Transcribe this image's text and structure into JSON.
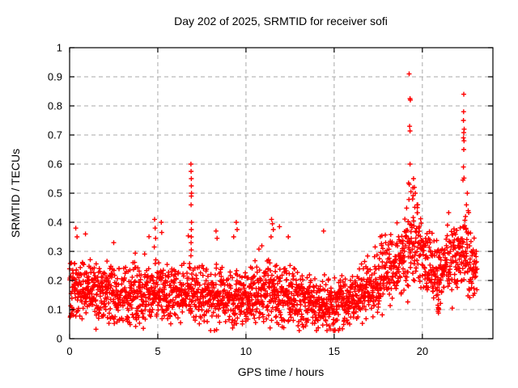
{
  "chart_data": {
    "type": "scatter",
    "title": "Day 202 of 2025, SRMTID for receiver sofi",
    "xlabel": "GPS time / hours",
    "ylabel": "SRMTID / TECUs",
    "xlim": [
      0,
      24
    ],
    "ylim": [
      0,
      1
    ],
    "xticks": {
      "values": [
        0,
        5,
        10,
        15,
        20
      ],
      "labels": [
        "0",
        "5",
        "10",
        "15",
        "20"
      ]
    },
    "yticks": {
      "values": [
        0,
        0.1,
        0.2,
        0.3,
        0.4,
        0.5,
        0.6,
        0.7,
        0.8,
        0.9,
        1
      ],
      "labels": [
        "0",
        "0.1",
        "0.2",
        "0.3",
        "0.4",
        "0.5",
        "0.6",
        "0.7",
        "0.8",
        "0.9",
        "1"
      ]
    },
    "grid": {
      "visible": true,
      "style": "dashed",
      "color": "#a9a9a9"
    },
    "legend": {
      "visible": false
    },
    "marker": {
      "shape": "plus",
      "size": 7,
      "color": "#ff0000"
    },
    "axis_color": "#000000",
    "background_color": "#ffffff",
    "series_name": "SRMTID",
    "x_data_start": 0,
    "x_data_end": 23.1,
    "approx_point_count": 2300,
    "random_seed": 20250202,
    "band_envelope_by_hour": [
      {
        "hour": 0,
        "center": 0.18,
        "spread": 0.055,
        "burst": 0.12
      },
      {
        "hour": 1,
        "center": 0.17,
        "spread": 0.05,
        "burst": 0.1
      },
      {
        "hour": 2,
        "center": 0.155,
        "spread": 0.05,
        "burst": 0.1
      },
      {
        "hour": 3,
        "center": 0.15,
        "spread": 0.05,
        "burst": 0.12
      },
      {
        "hour": 4,
        "center": 0.155,
        "spread": 0.055,
        "burst": 0.14
      },
      {
        "hour": 5,
        "center": 0.16,
        "spread": 0.055,
        "burst": 0.14
      },
      {
        "hour": 6,
        "center": 0.15,
        "spread": 0.05,
        "burst": 0.1
      },
      {
        "hour": 7,
        "center": 0.16,
        "spread": 0.05,
        "burst": 0.12
      },
      {
        "hour": 8,
        "center": 0.15,
        "spread": 0.055,
        "burst": 0.12
      },
      {
        "hour": 9,
        "center": 0.14,
        "spread": 0.055,
        "burst": 0.14
      },
      {
        "hour": 10,
        "center": 0.14,
        "spread": 0.05,
        "burst": 0.11
      },
      {
        "hour": 11,
        "center": 0.16,
        "spread": 0.06,
        "burst": 0.16
      },
      {
        "hour": 12,
        "center": 0.15,
        "spread": 0.055,
        "burst": 0.13
      },
      {
        "hour": 13,
        "center": 0.13,
        "spread": 0.05,
        "burst": 0.1
      },
      {
        "hour": 14,
        "center": 0.12,
        "spread": 0.05,
        "burst": 0.1
      },
      {
        "hour": 15,
        "center": 0.115,
        "spread": 0.045,
        "burst": 0.08
      },
      {
        "hour": 16,
        "center": 0.13,
        "spread": 0.05,
        "burst": 0.08
      },
      {
        "hour": 17,
        "center": 0.17,
        "spread": 0.055,
        "burst": 0.1
      },
      {
        "hour": 18,
        "center": 0.22,
        "spread": 0.06,
        "burst": 0.11
      },
      {
        "hour": 19,
        "center": 0.3,
        "spread": 0.075,
        "burst": 0.16
      },
      {
        "hour": 19.5,
        "center": 0.34,
        "spread": 0.08,
        "burst": 0.17
      },
      {
        "hour": 20,
        "center": 0.3,
        "spread": 0.07,
        "burst": 0.12
      },
      {
        "hour": 20.8,
        "center": 0.22,
        "spread": 0.06,
        "burst": 0.1
      },
      {
        "hour": 21.5,
        "center": 0.25,
        "spread": 0.065,
        "burst": 0.13
      },
      {
        "hour": 22.3,
        "center": 0.28,
        "spread": 0.07,
        "burst": 0.16
      },
      {
        "hour": 23.1,
        "center": 0.22,
        "spread": 0.05,
        "burst": 0.08
      }
    ],
    "notable_points": [
      [
        0.35,
        0.38
      ],
      [
        0.42,
        0.35
      ],
      [
        0.9,
        0.36
      ],
      [
        2.5,
        0.33
      ],
      [
        4.82,
        0.41
      ],
      [
        4.85,
        0.38
      ],
      [
        4.88,
        0.345
      ],
      [
        4.8,
        0.315
      ],
      [
        5.2,
        0.4
      ],
      [
        5.22,
        0.365
      ],
      [
        6.88,
        0.6
      ],
      [
        6.89,
        0.575
      ],
      [
        6.9,
        0.55
      ],
      [
        6.9,
        0.525
      ],
      [
        6.91,
        0.5
      ],
      [
        6.9,
        0.49
      ],
      [
        6.89,
        0.46
      ],
      [
        6.91,
        0.4
      ],
      [
        6.9,
        0.375
      ],
      [
        6.9,
        0.35
      ],
      [
        6.89,
        0.33
      ],
      [
        6.9,
        0.305
      ],
      [
        6.88,
        0.285
      ],
      [
        8.3,
        0.37
      ],
      [
        8.36,
        0.345
      ],
      [
        9.45,
        0.4
      ],
      [
        9.5,
        0.375
      ],
      [
        9.3,
        0.35
      ],
      [
        11.45,
        0.41
      ],
      [
        11.5,
        0.395
      ],
      [
        11.55,
        0.375
      ],
      [
        11.42,
        0.35
      ],
      [
        11.9,
        0.385
      ],
      [
        12.4,
        0.35
      ],
      [
        14.4,
        0.37
      ],
      [
        19.25,
        0.91
      ],
      [
        19.3,
        0.825
      ],
      [
        19.32,
        0.82
      ],
      [
        19.28,
        0.73
      ],
      [
        19.3,
        0.714
      ],
      [
        19.3,
        0.6
      ],
      [
        19.22,
        0.535
      ],
      [
        19.26,
        0.53
      ],
      [
        19.35,
        0.505
      ],
      [
        19.5,
        0.55
      ],
      [
        19.55,
        0.52
      ],
      [
        19.6,
        0.5
      ],
      [
        19.45,
        0.48
      ],
      [
        19.7,
        0.46
      ],
      [
        20.88,
        0.115
      ],
      [
        20.9,
        0.107
      ],
      [
        20.92,
        0.1
      ],
      [
        20.89,
        0.094
      ],
      [
        20.91,
        0.088
      ],
      [
        20.93,
        0.103
      ],
      [
        22.35,
        0.84
      ],
      [
        22.34,
        0.78
      ],
      [
        22.33,
        0.75
      ],
      [
        22.37,
        0.72
      ],
      [
        22.35,
        0.708
      ],
      [
        22.33,
        0.69
      ],
      [
        22.36,
        0.68
      ],
      [
        22.35,
        0.65
      ],
      [
        22.33,
        0.59
      ],
      [
        22.36,
        0.552
      ],
      [
        22.3,
        0.545
      ],
      [
        22.55,
        0.5
      ],
      [
        22.5,
        0.46
      ],
      [
        22.6,
        0.44
      ],
      [
        22.45,
        0.42
      ]
    ]
  }
}
